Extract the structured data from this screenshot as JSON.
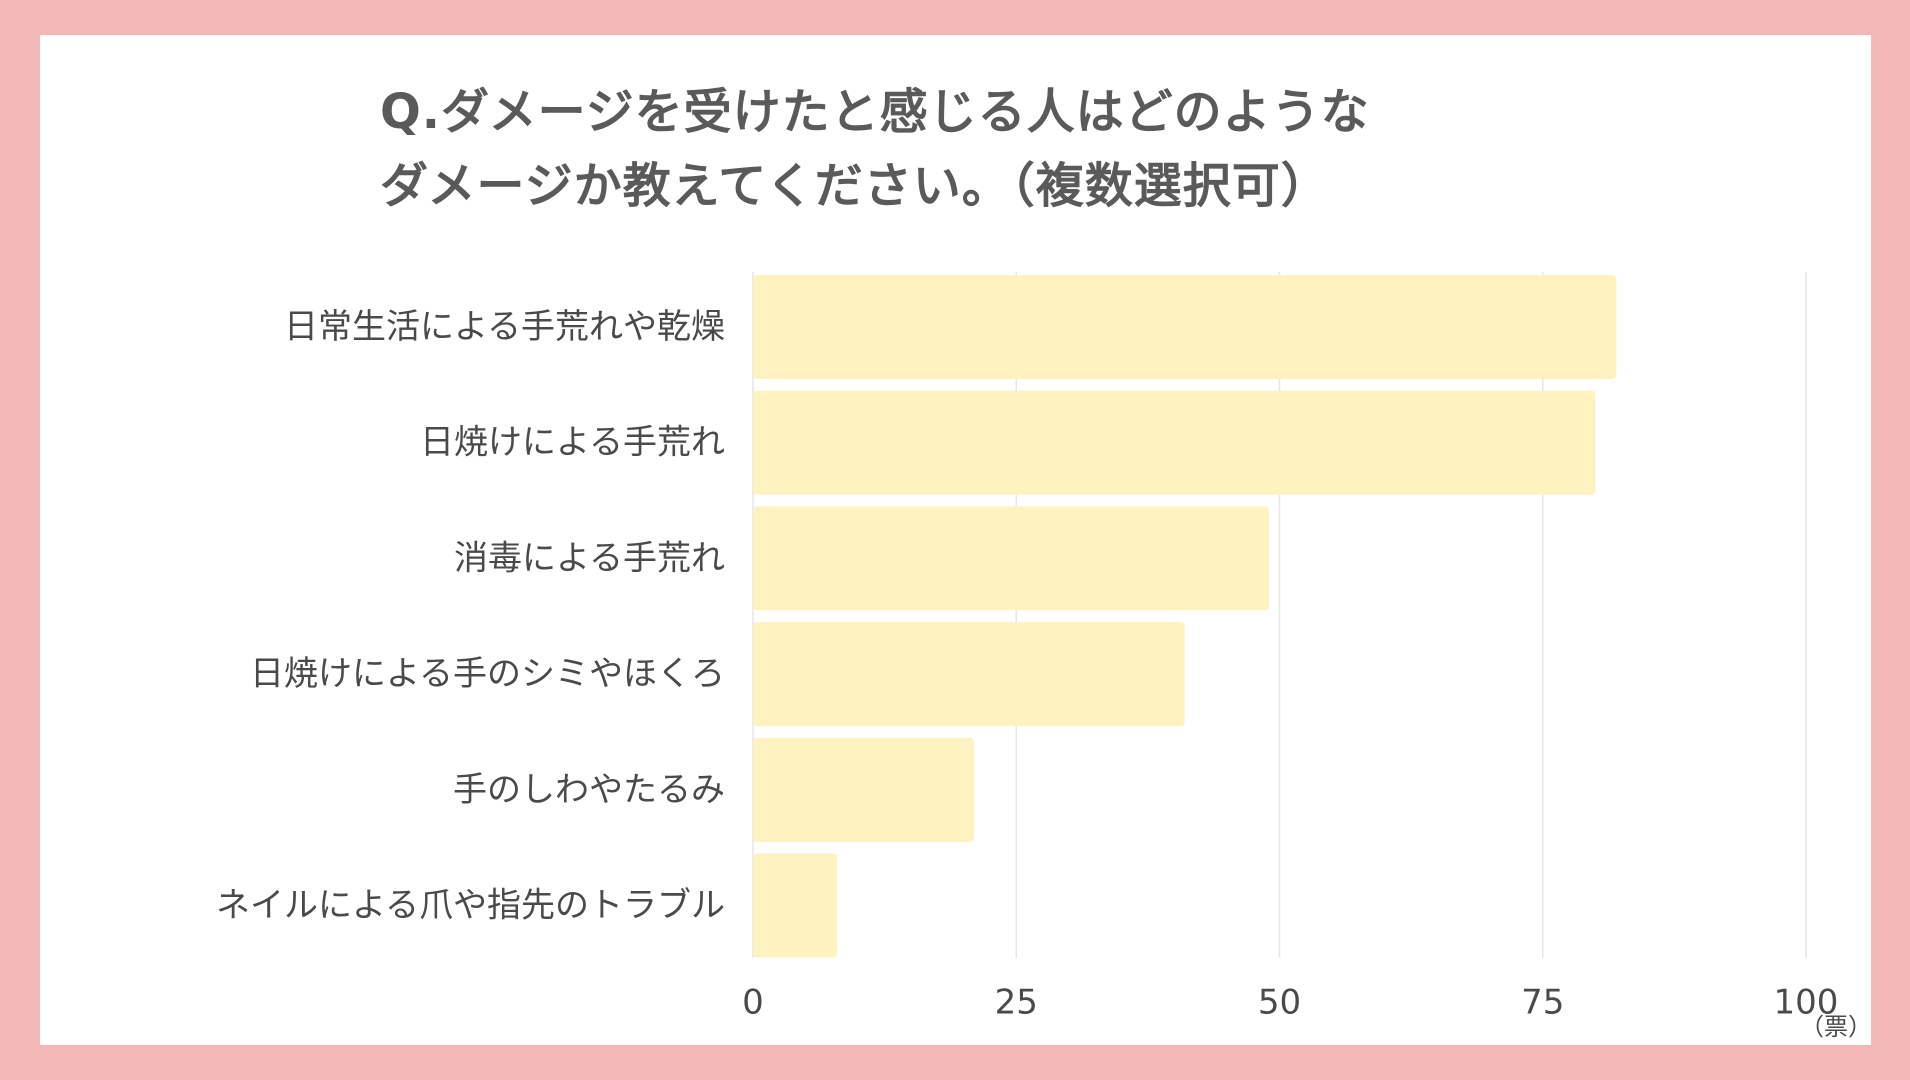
{
  "colors": {
    "frame": "#f4b7b8",
    "card": "#ffffff",
    "bar": "#fef2c0",
    "grid": "#e6e6e6",
    "text": "#4a4a4a",
    "title": "#5a5a5a"
  },
  "chart_data": {
    "type": "bar",
    "orientation": "horizontal",
    "title_lines": [
      "Q.ダメージを受けたと感じる人はどのような",
      "ダメージか教えてください。（複数選択可）"
    ],
    "categories": [
      "日常生活による手荒れや乾燥",
      "日焼けによる手荒れ",
      "消毒による手荒れ",
      "日焼けによる手のシミやほくろ",
      "手のしわやたるみ",
      "ネイルによる爪や指先のトラブル"
    ],
    "values": [
      82,
      80,
      49,
      41,
      21,
      8
    ],
    "x_ticks": [
      "0",
      "25",
      "50",
      "75",
      "100"
    ],
    "xlim": [
      0,
      100
    ],
    "x_unit": "（票）",
    "grid": true
  }
}
